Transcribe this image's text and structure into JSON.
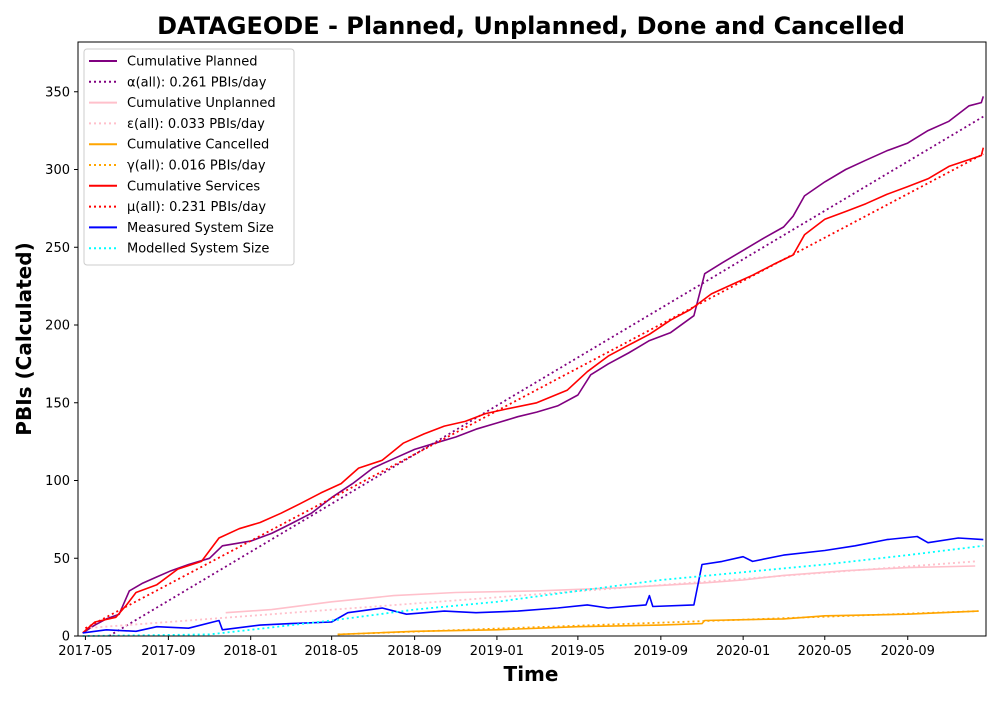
{
  "chart_data": {
    "type": "line",
    "title": "DATAGEODE - Planned, Unplanned, Done  and Cancelled",
    "xlabel": "Time",
    "ylabel": "PBIs (Calculated)",
    "x_ticks": [
      "2017-05",
      "2017-09",
      "2018-01",
      "2018-05",
      "2018-09",
      "2019-01",
      "2019-05",
      "2019-09",
      "2020-01",
      "2020-05",
      "2020-09"
    ],
    "y_ticks": [
      "0",
      "50",
      "100",
      "150",
      "200",
      "250",
      "300",
      "350"
    ],
    "xlim": [
      "2017-04-20",
      "2020-12-26"
    ],
    "ylim": [
      0,
      382
    ],
    "grid": false,
    "legend_position": "top-left",
    "series": [
      {
        "name": "Cumulative Planned",
        "color": "#800080",
        "style": "solid",
        "points": [
          [
            "2017-04-27",
            2
          ],
          [
            "2017-05-15",
            7
          ],
          [
            "2017-06-01",
            11
          ],
          [
            "2017-06-20",
            14
          ],
          [
            "2017-07-05",
            29
          ],
          [
            "2017-07-25",
            34
          ],
          [
            "2017-08-15",
            38
          ],
          [
            "2017-09-05",
            42
          ],
          [
            "2017-10-01",
            46
          ],
          [
            "2017-11-01",
            50
          ],
          [
            "2017-11-20",
            58
          ],
          [
            "2018-01-01",
            61
          ],
          [
            "2018-02-01",
            66
          ],
          [
            "2018-03-01",
            72
          ],
          [
            "2018-04-01",
            79
          ],
          [
            "2018-05-01",
            89
          ],
          [
            "2018-06-01",
            98
          ],
          [
            "2018-07-01",
            108
          ],
          [
            "2018-08-01",
            114
          ],
          [
            "2018-09-01",
            120
          ],
          [
            "2018-10-01",
            124
          ],
          [
            "2018-11-01",
            128
          ],
          [
            "2018-12-01",
            133
          ],
          [
            "2019-01-01",
            137
          ],
          [
            "2019-02-01",
            141
          ],
          [
            "2019-03-01",
            144
          ],
          [
            "2019-04-01",
            148
          ],
          [
            "2019-05-01",
            155
          ],
          [
            "2019-05-20",
            168
          ],
          [
            "2019-06-15",
            175
          ],
          [
            "2019-07-15",
            182
          ],
          [
            "2019-08-15",
            190
          ],
          [
            "2019-09-15",
            195
          ],
          [
            "2019-10-20",
            206
          ],
          [
            "2019-11-05",
            233
          ],
          [
            "2019-12-01",
            240
          ],
          [
            "2020-01-01",
            248
          ],
          [
            "2020-02-01",
            256
          ],
          [
            "2020-03-01",
            263
          ],
          [
            "2020-03-15",
            270
          ],
          [
            "2020-04-01",
            283
          ],
          [
            "2020-05-01",
            292
          ],
          [
            "2020-06-01",
            300
          ],
          [
            "2020-07-01",
            306
          ],
          [
            "2020-08-01",
            312
          ],
          [
            "2020-09-01",
            317
          ],
          [
            "2020-10-01",
            325
          ],
          [
            "2020-11-01",
            331
          ],
          [
            "2020-12-01",
            341
          ],
          [
            "2020-12-19",
            343
          ],
          [
            "2020-12-22",
            347
          ]
        ]
      },
      {
        "name": "α(all): 0.261 PBIs/day",
        "color": "#800080",
        "style": "dotted",
        "points": [
          [
            "2017-06-05",
            0
          ],
          [
            "2020-12-22",
            334
          ]
        ]
      },
      {
        "name": "Cumulative Unplanned",
        "color": "#FFC0CB",
        "style": "solid",
        "points": [
          [
            "2017-11-25",
            15
          ],
          [
            "2018-02-01",
            17
          ],
          [
            "2018-05-01",
            22
          ],
          [
            "2018-08-01",
            26
          ],
          [
            "2018-11-01",
            28
          ],
          [
            "2019-03-01",
            29
          ],
          [
            "2019-07-01",
            31
          ],
          [
            "2019-11-01",
            34
          ],
          [
            "2020-01-01",
            36
          ],
          [
            "2020-03-01",
            39
          ],
          [
            "2020-06-01",
            42
          ],
          [
            "2020-09-01",
            44
          ],
          [
            "2020-12-10",
            45
          ]
        ]
      },
      {
        "name": "ε(all): 0.033 PBIs/day",
        "color": "#FFC0CB",
        "style": "dotted",
        "points": [
          [
            "2017-05-01",
            5
          ],
          [
            "2020-12-10",
            48
          ]
        ]
      },
      {
        "name": "Cumulative Cancelled",
        "color": "#FFA500",
        "style": "solid",
        "points": [
          [
            "2018-05-10",
            1
          ],
          [
            "2018-09-01",
            3
          ],
          [
            "2019-01-01",
            4
          ],
          [
            "2019-05-01",
            6
          ],
          [
            "2019-09-01",
            7
          ],
          [
            "2019-11-01",
            8
          ],
          [
            "2019-11-05",
            10
          ],
          [
            "2020-03-01",
            11
          ],
          [
            "2020-05-01",
            13
          ],
          [
            "2020-09-01",
            14
          ],
          [
            "2020-12-15",
            16
          ]
        ]
      },
      {
        "name": "γ(all): 0.016 PBIs/day",
        "color": "#FFA500",
        "style": "dotted",
        "points": [
          [
            "2018-05-10",
            1
          ],
          [
            "2020-12-15",
            16
          ]
        ]
      },
      {
        "name": "Cumulative Services",
        "color": "#FF0000",
        "style": "solid",
        "points": [
          [
            "2017-04-27",
            2
          ],
          [
            "2017-05-15",
            9
          ],
          [
            "2017-06-15",
            12
          ],
          [
            "2017-07-01",
            20
          ],
          [
            "2017-07-15",
            28
          ],
          [
            "2017-08-15",
            33
          ],
          [
            "2017-09-15",
            43
          ],
          [
            "2017-10-20",
            48
          ],
          [
            "2017-11-15",
            63
          ],
          [
            "2017-12-15",
            69
          ],
          [
            "2018-01-15",
            73
          ],
          [
            "2018-02-15",
            79
          ],
          [
            "2018-03-15",
            85
          ],
          [
            "2018-04-15",
            92
          ],
          [
            "2018-05-15",
            98
          ],
          [
            "2018-06-10",
            108
          ],
          [
            "2018-07-15",
            113
          ],
          [
            "2018-08-15",
            124
          ],
          [
            "2018-09-15",
            130
          ],
          [
            "2018-10-15",
            135
          ],
          [
            "2018-11-15",
            138
          ],
          [
            "2018-12-15",
            143
          ],
          [
            "2019-01-15",
            146
          ],
          [
            "2019-03-01",
            150
          ],
          [
            "2019-04-15",
            158
          ],
          [
            "2019-05-15",
            170
          ],
          [
            "2019-06-15",
            180
          ],
          [
            "2019-07-15",
            187
          ],
          [
            "2019-08-15",
            194
          ],
          [
            "2019-09-15",
            203
          ],
          [
            "2019-10-15",
            210
          ],
          [
            "2019-11-15",
            220
          ],
          [
            "2019-12-15",
            226
          ],
          [
            "2020-01-15",
            232
          ],
          [
            "2020-02-15",
            239
          ],
          [
            "2020-03-15",
            245
          ],
          [
            "2020-04-01",
            258
          ],
          [
            "2020-05-01",
            268
          ],
          [
            "2020-06-01",
            273
          ],
          [
            "2020-07-01",
            278
          ],
          [
            "2020-08-01",
            284
          ],
          [
            "2020-09-01",
            289
          ],
          [
            "2020-10-01",
            294
          ],
          [
            "2020-11-01",
            302
          ],
          [
            "2020-12-19",
            309
          ],
          [
            "2020-12-22",
            314
          ]
        ]
      },
      {
        "name": "μ(all): 0.231 PBIs/day",
        "color": "#FF0000",
        "style": "dotted",
        "points": [
          [
            "2017-05-01",
            5
          ],
          [
            "2020-12-22",
            310
          ]
        ]
      },
      {
        "name": "Measured System Size",
        "color": "#0000FF",
        "style": "solid",
        "points": [
          [
            "2017-04-27",
            2
          ],
          [
            "2017-06-01",
            4
          ],
          [
            "2017-07-15",
            3
          ],
          [
            "2017-08-15",
            6
          ],
          [
            "2017-10-01",
            5
          ],
          [
            "2017-11-15",
            10
          ],
          [
            "2017-11-20",
            4
          ],
          [
            "2018-01-15",
            7
          ],
          [
            "2018-03-01",
            8
          ],
          [
            "2018-05-01",
            9
          ],
          [
            "2018-05-25",
            15
          ],
          [
            "2018-07-15",
            18
          ],
          [
            "2018-08-20",
            14
          ],
          [
            "2018-10-15",
            16
          ],
          [
            "2018-12-01",
            15
          ],
          [
            "2019-02-01",
            16
          ],
          [
            "2019-04-01",
            18
          ],
          [
            "2019-05-15",
            20
          ],
          [
            "2019-06-15",
            18
          ],
          [
            "2019-08-10",
            20
          ],
          [
            "2019-08-15",
            26
          ],
          [
            "2019-08-20",
            19
          ],
          [
            "2019-10-20",
            20
          ],
          [
            "2019-11-01",
            46
          ],
          [
            "2019-12-01",
            48
          ],
          [
            "2020-01-01",
            51
          ],
          [
            "2020-01-15",
            48
          ],
          [
            "2020-03-01",
            52
          ],
          [
            "2020-05-01",
            55
          ],
          [
            "2020-06-15",
            58
          ],
          [
            "2020-08-01",
            62
          ],
          [
            "2020-09-15",
            64
          ],
          [
            "2020-10-01",
            60
          ],
          [
            "2020-11-15",
            63
          ],
          [
            "2020-12-22",
            62
          ]
        ]
      },
      {
        "name": "Modelled System Size",
        "color": "#00FFFF",
        "style": "dotted",
        "points": [
          [
            "2017-04-27",
            0
          ],
          [
            "2017-11-01",
            1
          ],
          [
            "2018-01-01",
            4
          ],
          [
            "2018-05-01",
            10
          ],
          [
            "2018-09-01",
            17
          ],
          [
            "2019-01-01",
            22
          ],
          [
            "2019-05-01",
            29
          ],
          [
            "2019-09-01",
            36
          ],
          [
            "2020-01-01",
            41
          ],
          [
            "2020-05-01",
            46
          ],
          [
            "2020-09-01",
            52
          ],
          [
            "2020-12-22",
            58
          ]
        ]
      }
    ]
  }
}
